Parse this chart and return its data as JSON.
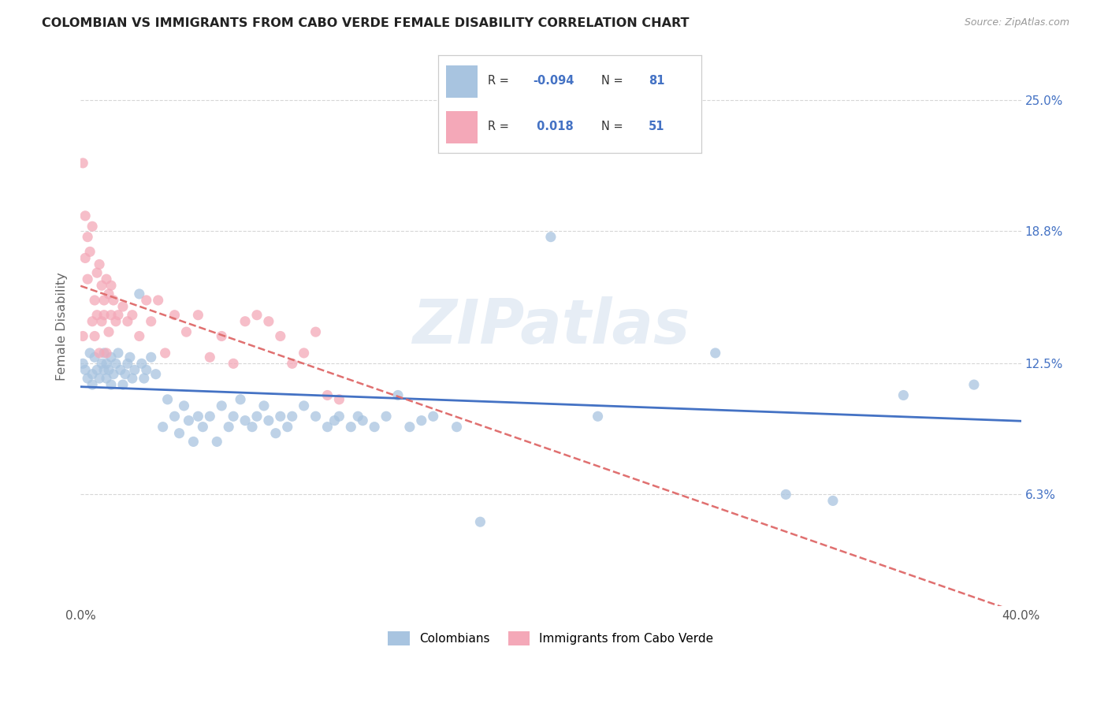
{
  "title": "COLOMBIAN VS IMMIGRANTS FROM CABO VERDE FEMALE DISABILITY CORRELATION CHART",
  "source": "Source: ZipAtlas.com",
  "ylabel": "Female Disability",
  "ytick_labels": [
    "25.0%",
    "18.8%",
    "12.5%",
    "6.3%"
  ],
  "ytick_values": [
    0.25,
    0.188,
    0.125,
    0.063
  ],
  "xmin": 0.0,
  "xmax": 0.4,
  "ymin": 0.01,
  "ymax": 0.275,
  "legend_colombians": "Colombians",
  "legend_caboverde": "Immigrants from Cabo Verde",
  "R_colombians": -0.094,
  "N_colombians": 81,
  "R_caboverde": 0.018,
  "N_caboverde": 51,
  "color_colombians": "#a8c4e0",
  "color_caboverde": "#f4a8b8",
  "color_line_colombians": "#4472c4",
  "color_line_caboverde": "#e07070",
  "color_R_value": "#4472c4",
  "background_color": "#ffffff",
  "grid_color": "#cccccc",
  "watermark": "ZIPatlas",
  "colombians_x": [
    0.001,
    0.002,
    0.003,
    0.004,
    0.005,
    0.005,
    0.006,
    0.007,
    0.008,
    0.009,
    0.01,
    0.01,
    0.011,
    0.011,
    0.012,
    0.013,
    0.013,
    0.014,
    0.015,
    0.016,
    0.017,
    0.018,
    0.019,
    0.02,
    0.021,
    0.022,
    0.023,
    0.025,
    0.026,
    0.027,
    0.028,
    0.03,
    0.032,
    0.035,
    0.037,
    0.04,
    0.042,
    0.044,
    0.046,
    0.048,
    0.05,
    0.052,
    0.055,
    0.058,
    0.06,
    0.063,
    0.065,
    0.068,
    0.07,
    0.073,
    0.075,
    0.078,
    0.08,
    0.083,
    0.085,
    0.088,
    0.09,
    0.095,
    0.1,
    0.105,
    0.108,
    0.11,
    0.115,
    0.118,
    0.12,
    0.125,
    0.13,
    0.135,
    0.14,
    0.145,
    0.15,
    0.16,
    0.17,
    0.2,
    0.22,
    0.25,
    0.27,
    0.3,
    0.32,
    0.35,
    0.38
  ],
  "colombians_y": [
    0.125,
    0.122,
    0.118,
    0.13,
    0.12,
    0.115,
    0.128,
    0.122,
    0.118,
    0.125,
    0.122,
    0.13,
    0.125,
    0.118,
    0.122,
    0.128,
    0.115,
    0.12,
    0.125,
    0.13,
    0.122,
    0.115,
    0.12,
    0.125,
    0.128,
    0.118,
    0.122,
    0.158,
    0.125,
    0.118,
    0.122,
    0.128,
    0.12,
    0.095,
    0.108,
    0.1,
    0.092,
    0.105,
    0.098,
    0.088,
    0.1,
    0.095,
    0.1,
    0.088,
    0.105,
    0.095,
    0.1,
    0.108,
    0.098,
    0.095,
    0.1,
    0.105,
    0.098,
    0.092,
    0.1,
    0.095,
    0.1,
    0.105,
    0.1,
    0.095,
    0.098,
    0.1,
    0.095,
    0.1,
    0.098,
    0.095,
    0.1,
    0.11,
    0.095,
    0.098,
    0.1,
    0.095,
    0.05,
    0.185,
    0.1,
    0.245,
    0.13,
    0.063,
    0.06,
    0.11,
    0.115
  ],
  "caboverde_x": [
    0.001,
    0.001,
    0.002,
    0.002,
    0.003,
    0.003,
    0.004,
    0.005,
    0.005,
    0.006,
    0.006,
    0.007,
    0.007,
    0.008,
    0.008,
    0.009,
    0.009,
    0.01,
    0.01,
    0.011,
    0.011,
    0.012,
    0.012,
    0.013,
    0.013,
    0.014,
    0.015,
    0.016,
    0.018,
    0.02,
    0.022,
    0.025,
    0.028,
    0.03,
    0.033,
    0.036,
    0.04,
    0.045,
    0.05,
    0.055,
    0.06,
    0.065,
    0.07,
    0.075,
    0.08,
    0.085,
    0.09,
    0.095,
    0.1,
    0.105,
    0.11
  ],
  "caboverde_y": [
    0.138,
    0.22,
    0.175,
    0.195,
    0.185,
    0.165,
    0.178,
    0.19,
    0.145,
    0.155,
    0.138,
    0.168,
    0.148,
    0.172,
    0.13,
    0.162,
    0.145,
    0.155,
    0.148,
    0.165,
    0.13,
    0.158,
    0.14,
    0.162,
    0.148,
    0.155,
    0.145,
    0.148,
    0.152,
    0.145,
    0.148,
    0.138,
    0.155,
    0.145,
    0.155,
    0.13,
    0.148,
    0.14,
    0.148,
    0.128,
    0.138,
    0.125,
    0.145,
    0.148,
    0.145,
    0.138,
    0.125,
    0.13,
    0.14,
    0.11,
    0.108
  ]
}
